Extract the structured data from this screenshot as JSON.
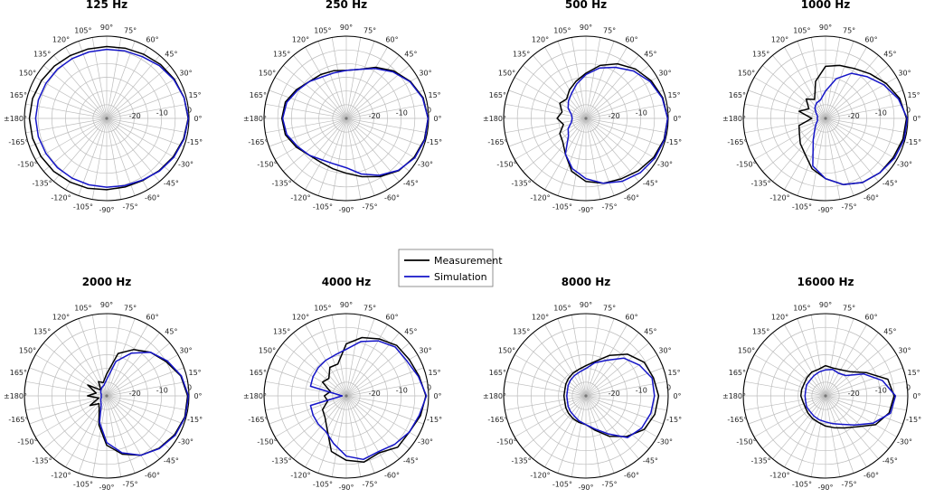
{
  "chart_data": {
    "type": "polar-line",
    "legend": {
      "placement": "center",
      "entries": [
        {
          "name": "Measurement",
          "color": "#000000"
        },
        {
          "name": "Simulation",
          "color": "#1515c8"
        }
      ]
    },
    "angle_tick_labels": [
      "0°",
      "15°",
      "30°",
      "45°",
      "60°",
      "75°",
      "90°",
      "105°",
      "120°",
      "135°",
      "150°",
      "165°",
      "±180°",
      "-165°",
      "-150°",
      "-135°",
      "-120°",
      "-105°",
      "-90°",
      "-75°",
      "-60°",
      "-45°",
      "-30°",
      "-15°"
    ],
    "radial_tick_labels": [
      "-20",
      "-10",
      "0"
    ],
    "radial_range_db": [
      -30,
      0
    ],
    "angles_deg": [
      0,
      15,
      30,
      45,
      60,
      75,
      90,
      105,
      120,
      135,
      150,
      165,
      180,
      195,
      210,
      225,
      240,
      255,
      270,
      285,
      300,
      315,
      330,
      345
    ],
    "panels": [
      {
        "title": "125 Hz",
        "series": [
          {
            "name": "Measurement",
            "level_db": [
              -0.3,
              -0.8,
              -1.5,
              -2.2,
              -3.0,
              -3.5,
              -3.8,
              -3.8,
              -3.5,
              -3.0,
              -2.5,
              -2.0,
              -1.8,
              -2.0,
              -2.3,
              -2.7,
              -3.2,
              -3.6,
              -4.0,
              -4.1,
              -3.8,
              -3.0,
              -2.0,
              -1.0
            ]
          },
          {
            "name": "Simulation",
            "level_db": [
              -0.2,
              -0.8,
              -1.7,
              -2.8,
              -4.0,
              -4.5,
              -4.8,
              -4.9,
              -4.8,
              -4.6,
              -4.4,
              -4.2,
              -4.1,
              -4.2,
              -4.4,
              -4.6,
              -4.8,
              -4.9,
              -4.9,
              -4.6,
              -4.0,
              -2.8,
              -1.7,
              -0.8
            ]
          }
        ]
      },
      {
        "title": "250 Hz",
        "series": [
          {
            "name": "Measurement",
            "level_db": [
              -0.2,
              -1.0,
              -3.0,
              -5.5,
              -8.5,
              -11.5,
              -12.5,
              -12.0,
              -11.5,
              -11.0,
              -9.0,
              -7.0,
              -6.5,
              -7.0,
              -9.0,
              -11.0,
              -11.5,
              -11.0,
              -10.0,
              -8.0,
              -5.5,
              -3.0,
              -1.5,
              -0.5
            ]
          },
          {
            "name": "Simulation",
            "level_db": [
              -0.2,
              -1.2,
              -3.2,
              -6.0,
              -9.0,
              -11.5,
              -12.5,
              -12.8,
              -12.5,
              -11.0,
              -9.5,
              -7.5,
              -6.8,
              -7.5,
              -9.5,
              -11.0,
              -12.5,
              -12.8,
              -12.0,
              -9.0,
              -6.0,
              -3.2,
              -1.2,
              -0.3
            ]
          }
        ]
      },
      {
        "title": "500 Hz",
        "series": [
          {
            "name": "Measurement",
            "level_db": [
              -0.2,
              -1.0,
              -2.5,
              -4.5,
              -7.0,
              -10.0,
              -13.5,
              -16.0,
              -18.0,
              -20.0,
              -19.0,
              -21.0,
              -19.5,
              -21.5,
              -19.0,
              -18.0,
              -15.0,
              -10.0,
              -7.0,
              -5.5,
              -4.5,
              -3.0,
              -1.5,
              -0.5
            ]
          },
          {
            "name": "Simulation",
            "level_db": [
              -0.2,
              -1.2,
              -3.0,
              -5.5,
              -8.5,
              -11.0,
              -14.0,
              -17.0,
              -19.5,
              -21.0,
              -22.5,
              -24.5,
              -25.0,
              -24.5,
              -22.5,
              -21.0,
              -15.0,
              -11.0,
              -8.0,
              -5.5,
              -3.5,
              -2.0,
              -1.0,
              -0.3
            ]
          }
        ]
      },
      {
        "title": "1000 Hz",
        "series": [
          {
            "name": "Measurement",
            "level_db": [
              -0.5,
              -2.0,
              -4.5,
              -7.0,
              -9.0,
              -10.0,
              -11.0,
              -16.0,
              -22.0,
              -20.0,
              -23.0,
              -20.0,
              -25.0,
              -20.0,
              -19.0,
              -17.0,
              -15.0,
              -11.0,
              -8.0,
              -5.0,
              -3.0,
              -2.0,
              -1.5,
              -0.8
            ]
          },
          {
            "name": "Simulation",
            "level_db": [
              -0.2,
              -2.5,
              -5.5,
              -8.5,
              -11.0,
              -15.0,
              -20.0,
              -23.0,
              -23.5,
              -24.5,
              -26.0,
              -27.0,
              -27.0,
              -27.0,
              -26.0,
              -24.5,
              -21.0,
              -12.0,
              -8.0,
              -5.0,
              -3.0,
              -2.0,
              -1.0,
              -0.3
            ]
          }
        ]
      },
      {
        "title": "2000 Hz",
        "series": [
          {
            "name": "Measurement",
            "level_db": [
              -0.5,
              -2.0,
              -5.0,
              -7.5,
              -10.5,
              -14.0,
              -22.0,
              -25.0,
              -24.0,
              -27.0,
              -22.0,
              -26.0,
              -23.0,
              -27.0,
              -23.0,
              -26.0,
              -24.5,
              -19.0,
              -12.0,
              -8.0,
              -5.0,
              -3.0,
              -1.5,
              -0.5
            ]
          },
          {
            "name": "Simulation",
            "level_db": [
              -0.2,
              -1.8,
              -4.5,
              -7.5,
              -12.0,
              -17.0,
              -24.0,
              -26.0,
              -26.5,
              -27.0,
              -27.5,
              -28.0,
              -28.0,
              -28.0,
              -27.5,
              -27.0,
              -26.0,
              -20.0,
              -13.0,
              -8.5,
              -5.0,
              -2.8,
              -1.2,
              -0.3
            ]
          }
        ]
      },
      {
        "title": "4000 Hz",
        "series": [
          {
            "name": "Measurement",
            "level_db": [
              -1.0,
              -2.5,
              -3.5,
              -4.0,
              -6.0,
              -8.0,
              -11.0,
              -18.0,
              -18.0,
              -21.0,
              -20.0,
              -24.0,
              -22.0,
              -23.0,
              -20.0,
              -19.0,
              -16.0,
              -9.0,
              -6.5,
              -5.0,
              -6.0,
              -3.5,
              -3.5,
              -2.0
            ]
          },
          {
            "name": "Simulation",
            "level_db": [
              -0.8,
              -2.8,
              -4.5,
              -4.8,
              -6.8,
              -9.5,
              -13.0,
              -14.5,
              -15.0,
              -15.5,
              -16.0,
              -16.5,
              -28.5,
              -16.5,
              -16.0,
              -15.5,
              -15.0,
              -12.0,
              -8.0,
              -6.0,
              -6.5,
              -5.0,
              -3.5,
              -2.5
            ]
          }
        ]
      },
      {
        "title": "8000 Hz",
        "series": [
          {
            "name": "Measurement",
            "level_db": [
              -3.5,
              -4.5,
              -5.5,
              -8.5,
              -13.0,
              -17.0,
              -19.0,
              -20.0,
              -20.5,
              -21.0,
              -21.5,
              -22.0,
              -22.0,
              -22.0,
              -21.5,
              -21.0,
              -20.5,
              -20.0,
              -19.5,
              -17.0,
              -13.0,
              -9.0,
              -5.5,
              -4.0
            ]
          },
          {
            "name": "Simulation",
            "level_db": [
              -5.0,
              -5.0,
              -7.5,
              -10.5,
              -15.0,
              -17.5,
              -20.0,
              -21.0,
              -21.5,
              -22.0,
              -22.5,
              -23.0,
              -23.0,
              -23.0,
              -22.5,
              -22.0,
              -21.5,
              -20.5,
              -19.5,
              -17.5,
              -14.0,
              -8.5,
              -6.5,
              -5.5
            ]
          }
        ]
      },
      {
        "title": "16000 Hz",
        "series": [
          {
            "name": "Measurement",
            "level_db": [
              -5.0,
              -6.5,
              -13.0,
              -17.5,
              -19.0,
              -19.5,
              -19.0,
              -20.0,
              -20.0,
              -20.5,
              -21.0,
              -21.0,
              -21.0,
              -21.5,
              -21.5,
              -21.0,
              -20.5,
              -20.0,
              -19.0,
              -18.0,
              -16.5,
              -14.0,
              -9.0,
              -6.0
            ]
          },
          {
            "name": "Simulation",
            "level_db": [
              -4.5,
              -8.5,
              -14.0,
              -19.5,
              -20.5,
              -20.0,
              -20.5,
              -21.0,
              -21.5,
              -22.0,
              -22.0,
              -22.5,
              -22.5,
              -22.5,
              -22.0,
              -22.0,
              -21.5,
              -21.0,
              -20.5,
              -19.5,
              -18.0,
              -15.0,
              -10.0,
              -5.5
            ]
          }
        ]
      }
    ]
  }
}
